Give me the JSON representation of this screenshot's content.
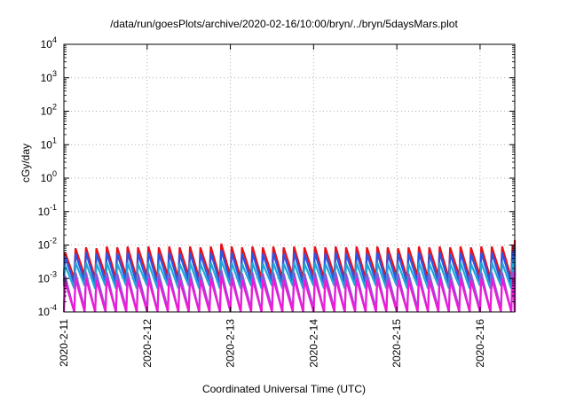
{
  "chart_data": {
    "type": "line",
    "title": "/data/run/goesPlots/archive/2020-02-16/10:00/bryn/../bryn/5daysMars.plot",
    "xlabel": "Coordinated Universal Time (UTC)",
    "ylabel": "cGy/day",
    "y_scale": "log",
    "ylim": [
      0.0001,
      10000
    ],
    "y_ticks": [
      {
        "base": "10",
        "exp": "-4"
      },
      {
        "base": "10",
        "exp": "-3"
      },
      {
        "base": "10",
        "exp": "-2"
      },
      {
        "base": "10",
        "exp": "-1"
      },
      {
        "base": "10",
        "exp": "0"
      },
      {
        "base": "10",
        "exp": "1"
      },
      {
        "base": "10",
        "exp": "2"
      },
      {
        "base": "10",
        "exp": "3"
      },
      {
        "base": "10",
        "exp": "4"
      }
    ],
    "xlim": [
      "2020-02-11",
      "2020-02-16 10:00"
    ],
    "x_ticks": [
      "2020-2-11",
      "2020-2-12",
      "2020-2-13",
      "2020-2-14",
      "2020-2-15",
      "2020-2-16"
    ],
    "grid": true,
    "legend": "none",
    "pattern_note_period_hours": 3,
    "series": [
      {
        "color": "#e8101a",
        "values": [
          0.006,
          0.008,
          0.0085,
          0.008,
          0.009,
          0.0085,
          0.009,
          0.0085,
          0.009,
          0.0085,
          0.009,
          0.0085,
          0.009,
          0.0085,
          0.009,
          0.011,
          0.009,
          0.0085,
          0.009,
          0.0085,
          0.009,
          0.0085,
          0.009,
          0.0085,
          0.009,
          0.0085,
          0.009,
          0.0085,
          0.009,
          0.0085,
          0.009,
          0.0085,
          0.008,
          0.0085,
          0.009,
          0.0085,
          0.009,
          0.0085,
          0.009,
          0.0085,
          0.009,
          0.009,
          0.009,
          0.01,
          0.011,
          0.009,
          0.014,
          0.012,
          0.008,
          0.007
        ],
        "lows": [
          0.0012,
          0.001,
          0.0012,
          0.001,
          0.0012,
          0.001,
          0.0012,
          0.001,
          0.0012,
          0.001,
          0.0012,
          0.001,
          0.0012,
          0.001,
          0.0012,
          0.001,
          0.0012,
          0.001,
          0.0012,
          0.001,
          0.0012,
          0.001,
          0.0012,
          0.001,
          0.0012,
          0.001,
          0.0012,
          0.001,
          0.0012,
          0.001,
          0.0012,
          0.001,
          0.0012,
          0.001,
          0.0012,
          0.001,
          0.0012,
          0.001,
          0.0012,
          0.001,
          0.0012,
          0.001,
          0.0012,
          0.001,
          0.0012,
          0.0015,
          0.0012,
          0.001,
          0.0012,
          0.001
        ]
      },
      {
        "color": "#2a55e6",
        "values": [
          0.0045,
          0.0055,
          0.006,
          0.0055,
          0.006,
          0.0055,
          0.006,
          0.0055,
          0.006,
          0.0055,
          0.006,
          0.0055,
          0.006,
          0.0055,
          0.006,
          0.007,
          0.006,
          0.0055,
          0.006,
          0.0055,
          0.006,
          0.0055,
          0.006,
          0.0055,
          0.006,
          0.0055,
          0.006,
          0.0055,
          0.006,
          0.0055,
          0.006,
          0.0055,
          0.0055,
          0.0055,
          0.006,
          0.0055,
          0.006,
          0.0055,
          0.006,
          0.0055,
          0.006,
          0.006,
          0.006,
          0.0065,
          0.007,
          0.006,
          0.009,
          0.008,
          0.0055,
          0.0045
        ],
        "lows": [
          0.0008,
          0.0007,
          0.0008,
          0.0007,
          0.0008,
          0.0007,
          0.0008,
          0.0007,
          0.0008,
          0.0007,
          0.0008,
          0.0007,
          0.0008,
          0.0007,
          0.0008,
          0.0007,
          0.0008,
          0.0007,
          0.0008,
          0.0007,
          0.0008,
          0.0007,
          0.0008,
          0.0007,
          0.0008,
          0.0007,
          0.0008,
          0.0007,
          0.0008,
          0.0007,
          0.0008,
          0.0007,
          0.0008,
          0.0007,
          0.0008,
          0.0007,
          0.0008,
          0.0007,
          0.0008,
          0.0007,
          0.0008,
          0.0007,
          0.0008,
          0.0007,
          0.0008,
          0.001,
          0.0008,
          0.0007,
          0.0008,
          0.0007
        ]
      },
      {
        "color": "#1fa6d8",
        "values": [
          0.0025,
          0.003,
          0.003,
          0.0028,
          0.003,
          0.0028,
          0.003,
          0.0028,
          0.003,
          0.0028,
          0.003,
          0.0028,
          0.003,
          0.0028,
          0.003,
          0.0035,
          0.003,
          0.0028,
          0.003,
          0.0028,
          0.003,
          0.0028,
          0.003,
          0.0028,
          0.003,
          0.0028,
          0.003,
          0.0028,
          0.003,
          0.0028,
          0.003,
          0.0028,
          0.0028,
          0.0028,
          0.003,
          0.0028,
          0.003,
          0.0028,
          0.003,
          0.0028,
          0.003,
          0.003,
          0.003,
          0.0032,
          0.0035,
          0.003,
          0.0045,
          0.004,
          0.0028,
          0.0025
        ],
        "lows": [
          0.0006,
          0.0005,
          0.0006,
          0.0005,
          0.0006,
          0.0005,
          0.0006,
          0.0005,
          0.0006,
          0.0005,
          0.0006,
          0.0005,
          0.0006,
          0.0005,
          0.0006,
          0.0005,
          0.0006,
          0.0005,
          0.0006,
          0.0005,
          0.0006,
          0.0005,
          0.0006,
          0.0005,
          0.0006,
          0.0005,
          0.0006,
          0.0005,
          0.0006,
          0.0005,
          0.0006,
          0.0005,
          0.0006,
          0.0005,
          0.0006,
          0.0005,
          0.0006,
          0.0005,
          0.0006,
          0.0005,
          0.0006,
          0.0005,
          0.0006,
          0.0005,
          0.0006,
          0.0008,
          0.0006,
          0.0005,
          0.0006,
          0.0005
        ]
      },
      {
        "color": "#8a57d6",
        "values": [
          0.0012,
          0.0015,
          0.0015,
          0.0014,
          0.0015,
          0.0014,
          0.0015,
          0.0014,
          0.0015,
          0.0014,
          0.0015,
          0.0014,
          0.0015,
          0.0014,
          0.0015,
          0.0018,
          0.0015,
          0.0014,
          0.0015,
          0.0014,
          0.0015,
          0.0014,
          0.0015,
          0.0014,
          0.0015,
          0.0014,
          0.0015,
          0.0014,
          0.0015,
          0.0014,
          0.0015,
          0.0014,
          0.0014,
          0.0014,
          0.0015,
          0.0014,
          0.0015,
          0.0014,
          0.0015,
          0.0014,
          0.0015,
          0.0015,
          0.0015,
          0.0016,
          0.0018,
          0.0015,
          0.0022,
          0.002,
          0.0014,
          0.0012
        ],
        "lows": [
          0.00012,
          0.0001,
          0.00012,
          0.0001,
          0.00012,
          0.0001,
          0.00012,
          0.0001,
          0.00012,
          0.0001,
          0.00012,
          0.0001,
          0.00012,
          0.0001,
          0.00012,
          0.0001,
          0.00012,
          0.0001,
          0.00012,
          0.0001,
          0.00012,
          0.0001,
          0.00012,
          0.0001,
          0.00012,
          0.0001,
          0.00012,
          0.0001,
          0.00012,
          0.0001,
          0.00012,
          0.0001,
          0.00012,
          0.0001,
          0.00012,
          0.0001,
          0.00012,
          0.0001,
          0.00012,
          0.0001,
          0.00012,
          0.0001,
          0.00012,
          0.0001,
          0.00012,
          0.00015,
          0.00012,
          0.0001,
          0.00012,
          0.0001
        ]
      },
      {
        "color": "#ee1ad8",
        "values": [
          0.0008,
          0.001,
          0.001,
          0.0009,
          0.001,
          0.0009,
          0.001,
          0.0009,
          0.001,
          0.0009,
          0.001,
          0.0009,
          0.001,
          0.0009,
          0.001,
          0.0012,
          0.001,
          0.0009,
          0.001,
          0.0009,
          0.001,
          0.0009,
          0.001,
          0.0009,
          0.001,
          0.0009,
          0.001,
          0.0009,
          0.001,
          0.0009,
          0.001,
          0.0009,
          0.0009,
          0.0009,
          0.001,
          0.0009,
          0.001,
          0.0009,
          0.001,
          0.0009,
          0.001,
          0.001,
          0.001,
          0.0011,
          0.0012,
          0.001,
          0.0015,
          0.0013,
          0.0009,
          0.0008
        ],
        "lows": [
          9e-05,
          8e-05,
          9e-05,
          8e-05,
          9e-05,
          8e-05,
          9e-05,
          8e-05,
          9e-05,
          8e-05,
          9e-05,
          8e-05,
          9e-05,
          8e-05,
          9e-05,
          8e-05,
          9e-05,
          8e-05,
          9e-05,
          8e-05,
          9e-05,
          8e-05,
          9e-05,
          8e-05,
          9e-05,
          8e-05,
          9e-05,
          8e-05,
          9e-05,
          8e-05,
          9e-05,
          8e-05,
          9e-05,
          8e-05,
          9e-05,
          8e-05,
          9e-05,
          8e-05,
          9e-05,
          8e-05,
          9e-05,
          8e-05,
          9e-05,
          8e-05,
          9e-05,
          0.0001,
          9e-05,
          8e-05,
          9e-05,
          8e-05
        ]
      }
    ]
  }
}
